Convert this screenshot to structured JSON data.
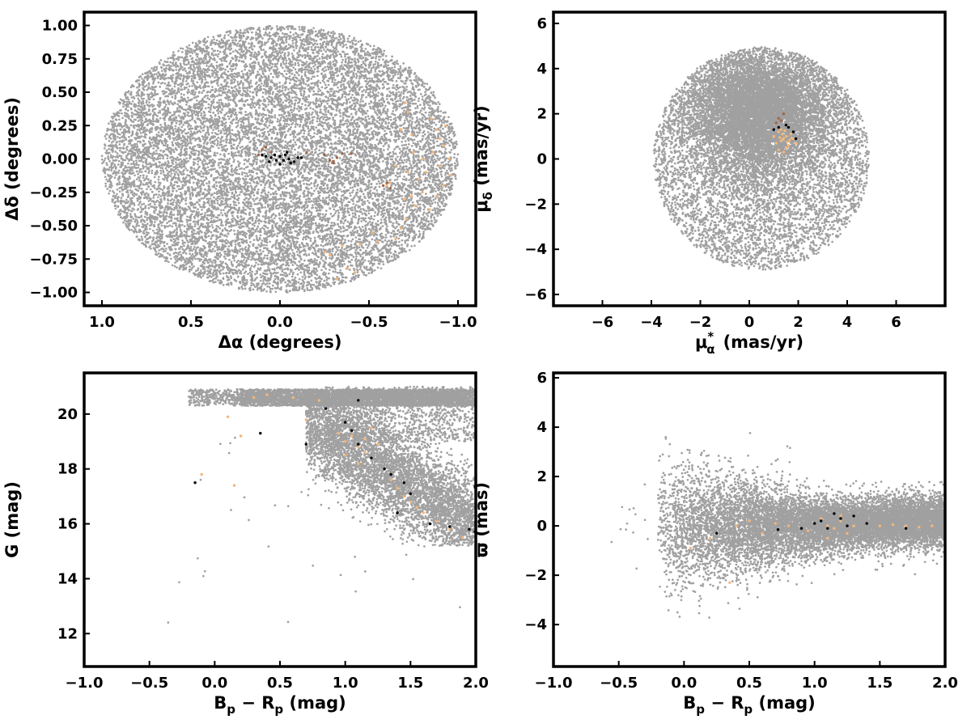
{
  "colors": {
    "field_stars": "#a0a0a0",
    "candidates": "#f4b77b",
    "brown_members": "#a0684a",
    "black_members": "#000000"
  },
  "chart_data": [
    {
      "id": "sky",
      "type": "scatter",
      "xlabel": "Δα (degrees)",
      "ylabel": "Δδ (degrees)",
      "xlim": [
        1.1,
        -1.1
      ],
      "ylim": [
        -1.1,
        1.1
      ],
      "x_inverted": true,
      "xticks": [
        1.0,
        0.5,
        0.0,
        -0.5,
        -1.0
      ],
      "xtick_labels": [
        "1.0",
        "0.5",
        "0.0",
        "−0.5",
        "−1.0"
      ],
      "yticks": [
        1.0,
        0.75,
        0.5,
        0.25,
        0.0,
        -0.25,
        -0.5,
        -0.75,
        -1.0
      ],
      "ytick_labels": [
        "1.00",
        "0.75",
        "0.50",
        "0.25",
        "0.00",
        "−0.25",
        "−0.50",
        "−0.75",
        "−1.00"
      ],
      "grid": false,
      "series": [
        {
          "color_key": "field_stars",
          "count": 14000,
          "description_shape": "uniform disk of radius 1.0 deg centered on (0,0)"
        },
        {
          "color_key": "candidates",
          "points": [
            [
              -0.7,
              0.42
            ],
            [
              -0.72,
              0.35
            ],
            [
              -0.68,
              0.22
            ],
            [
              -0.74,
              0.18
            ],
            [
              -0.85,
              0.3
            ],
            [
              -0.88,
              0.22
            ],
            [
              -0.9,
              0.15
            ],
            [
              -0.92,
              0.1
            ],
            [
              -0.86,
              0.05
            ],
            [
              -0.95,
              0.0
            ],
            [
              -0.9,
              -0.05
            ],
            [
              -0.82,
              -0.1
            ],
            [
              -0.78,
              -0.15
            ],
            [
              -0.92,
              -0.2
            ],
            [
              -0.88,
              -0.28
            ],
            [
              -0.8,
              -0.25
            ],
            [
              -0.72,
              -0.1
            ],
            [
              -0.7,
              -0.3
            ],
            [
              -0.65,
              -0.05
            ],
            [
              -0.62,
              -0.18
            ],
            [
              -0.75,
              0.05
            ],
            [
              -0.96,
              -0.12
            ],
            [
              -0.8,
              0.0
            ],
            [
              -0.76,
              -0.35
            ],
            [
              -0.71,
              -0.45
            ],
            [
              -0.65,
              -0.6
            ],
            [
              -0.55,
              -0.62
            ],
            [
              -0.45,
              -0.64
            ],
            [
              -0.35,
              -0.65
            ],
            [
              -0.25,
              -0.7
            ],
            [
              -0.38,
              -0.82
            ],
            [
              -0.42,
              -0.85
            ],
            [
              -0.32,
              -0.9
            ],
            [
              -0.28,
              -0.72
            ],
            [
              -0.52,
              -0.55
            ],
            [
              -0.68,
              -0.52
            ],
            [
              -0.74,
              -0.28
            ],
            [
              -0.93,
              0.25
            ],
            [
              -0.84,
              -0.38
            ],
            [
              -0.6,
              -0.2
            ]
          ]
        },
        {
          "color_key": "brown_members",
          "points": [
            [
              0.1,
              0.07
            ],
            [
              0.05,
              0.05
            ],
            [
              0.12,
              0.03
            ],
            [
              0.08,
              0.09
            ],
            [
              -0.15,
              0.05
            ],
            [
              -0.25,
              0.03
            ],
            [
              -0.3,
              -0.02
            ],
            [
              -0.32,
              0.01
            ],
            [
              -0.35,
              0.04
            ],
            [
              -0.28,
              -0.01
            ],
            [
              -0.4,
              0.04
            ],
            [
              -0.6,
              -0.18
            ],
            [
              -0.62,
              -0.22
            ],
            [
              -0.58,
              -0.2
            ],
            [
              -0.3,
              -0.03
            ]
          ]
        },
        {
          "color_key": "black_members",
          "points": [
            [
              0.08,
              0.02
            ],
            [
              0.05,
              0.01
            ],
            [
              0.02,
              -0.01
            ],
            [
              0.0,
              0.02
            ],
            [
              -0.02,
              -0.01
            ],
            [
              -0.05,
              0.0
            ],
            [
              -0.08,
              -0.02
            ],
            [
              -0.1,
              0.01
            ],
            [
              0.06,
              -0.02
            ],
            [
              0.03,
              0.03
            ],
            [
              -0.03,
              0.03
            ],
            [
              -0.06,
              -0.03
            ],
            [
              0.0,
              -0.04
            ],
            [
              -0.12,
              0.01
            ],
            [
              0.1,
              0.03
            ],
            [
              -0.04,
              0.05
            ]
          ]
        }
      ]
    },
    {
      "id": "proper_motion",
      "type": "scatter",
      "xlabel": "μ*α (mas/yr)",
      "ylabel": "μδ (mas/yr)",
      "xlim": [
        -8,
        8
      ],
      "ylim": [
        -6.5,
        6.5
      ],
      "xticks": [
        -6,
        -4,
        -2,
        0,
        2,
        4,
        6
      ],
      "xtick_labels": [
        "−6",
        "−4",
        "−2",
        "0",
        "2",
        "4",
        "6"
      ],
      "yticks": [
        6,
        4,
        2,
        0,
        -2,
        -4,
        -6
      ],
      "ytick_labels": [
        "6",
        "4",
        "2",
        "0",
        "−2",
        "−4",
        "−6"
      ],
      "grid": false,
      "series": [
        {
          "color_key": "field_stars",
          "count": 14000,
          "description_shape": "dense concentration near (0,2) within a disk of radius ~5 mas/yr"
        },
        {
          "color_key": "candidates",
          "points": [
            [
              1.3,
              0.8
            ],
            [
              1.5,
              1.0
            ],
            [
              1.2,
              1.2
            ],
            [
              1.6,
              0.6
            ],
            [
              1.4,
              0.9
            ],
            [
              1.7,
              1.1
            ],
            [
              1.1,
              0.7
            ],
            [
              1.5,
              0.5
            ],
            [
              1.3,
              1.3
            ],
            [
              1.8,
              0.9
            ],
            [
              1.2,
              0.4
            ],
            [
              1.6,
              1.4
            ],
            [
              1.0,
              1.0
            ],
            [
              1.4,
              0.3
            ],
            [
              1.9,
              0.7
            ],
            [
              1.35,
              1.1
            ],
            [
              1.55,
              0.75
            ],
            [
              1.25,
              0.95
            ],
            [
              1.45,
              1.25
            ],
            [
              1.65,
              0.85
            ]
          ]
        },
        {
          "color_key": "brown_members",
          "points": [
            [
              1.2,
              1.8
            ],
            [
              1.4,
              2.0
            ],
            [
              1.1,
              1.6
            ],
            [
              1.3,
              1.7
            ]
          ]
        },
        {
          "color_key": "black_members",
          "points": [
            [
              1.0,
              1.3
            ],
            [
              1.6,
              1.4
            ],
            [
              1.8,
              1.2
            ],
            [
              1.2,
              1.4
            ],
            [
              1.9,
              0.9
            ],
            [
              1.5,
              1.5
            ]
          ]
        }
      ]
    },
    {
      "id": "cmd",
      "type": "scatter",
      "xlabel": "Bp − Rp (mag)",
      "ylabel": "G (mag)",
      "xlim": [
        -1.0,
        2.0
      ],
      "ylim": [
        10.8,
        21.5
      ],
      "xticks": [
        -1.0,
        -0.5,
        0.0,
        0.5,
        1.0,
        1.5,
        2.0
      ],
      "xtick_labels": [
        "−1.0",
        "−0.5",
        "0.0",
        "0.5",
        "1.0",
        "1.5",
        "2.0"
      ],
      "yticks": [
        20,
        18,
        16,
        14,
        12
      ],
      "ytick_labels": [
        "20",
        "18",
        "16",
        "14",
        "12"
      ],
      "grid": false,
      "series": [
        {
          "color_key": "field_stars",
          "count": 12000,
          "description_shape": "faint band near G≈20.5 plus sequence from (0.9,19) to (2.0,15.5)"
        },
        {
          "color_key": "candidates",
          "points": [
            [
              1.0,
              19.0
            ],
            [
              1.1,
              18.8
            ],
            [
              1.05,
              19.2
            ],
            [
              1.15,
              18.6
            ],
            [
              1.2,
              18.4
            ],
            [
              1.25,
              18.9
            ],
            [
              0.95,
              19.3
            ],
            [
              1.1,
              18.2
            ],
            [
              1.3,
              18.0
            ],
            [
              1.35,
              17.6
            ],
            [
              1.4,
              17.3
            ],
            [
              1.45,
              17.0
            ],
            [
              1.5,
              16.8
            ],
            [
              1.55,
              16.6
            ],
            [
              1.6,
              16.4
            ],
            [
              1.7,
              16.1
            ],
            [
              1.8,
              15.8
            ],
            [
              1.9,
              15.5
            ],
            [
              0.6,
              20.6
            ],
            [
              0.4,
              20.7
            ],
            [
              0.8,
              20.5
            ],
            [
              0.3,
              20.6
            ],
            [
              0.7,
              19.8
            ],
            [
              1.2,
              19.5
            ],
            [
              0.1,
              19.9
            ],
            [
              0.2,
              19.2
            ],
            [
              -0.1,
              17.8
            ],
            [
              0.15,
              17.4
            ],
            [
              1.0,
              18.5
            ],
            [
              1.15,
              19.1
            ]
          ]
        },
        {
          "color_key": "black_members",
          "points": [
            [
              1.0,
              19.7
            ],
            [
              1.05,
              19.4
            ],
            [
              1.1,
              18.9
            ],
            [
              1.2,
              18.4
            ],
            [
              1.3,
              18.0
            ],
            [
              1.35,
              17.8
            ],
            [
              1.45,
              17.5
            ],
            [
              1.5,
              17.1
            ],
            [
              1.4,
              16.4
            ],
            [
              1.65,
              16.0
            ],
            [
              1.8,
              15.9
            ],
            [
              1.95,
              15.8
            ],
            [
              2.0,
              15.5
            ],
            [
              0.7,
              18.9
            ],
            [
              -0.15,
              17.5
            ],
            [
              0.35,
              19.3
            ],
            [
              0.85,
              20.2
            ],
            [
              1.1,
              20.5
            ]
          ]
        }
      ]
    },
    {
      "id": "parallax",
      "type": "scatter",
      "xlabel": "Bp − Rp (mag)",
      "ylabel": "ϖ (mas)",
      "xlim": [
        -1.0,
        2.0
      ],
      "ylim": [
        -5.7,
        6.2
      ],
      "xticks": [
        -1.0,
        -0.5,
        0.0,
        0.5,
        1.0,
        1.5,
        2.0
      ],
      "xtick_labels": [
        "−1.0",
        "−0.5",
        "0.0",
        "0.5",
        "1.0",
        "1.5",
        "2.0"
      ],
      "yticks": [
        6,
        4,
        2,
        0,
        -2,
        -4
      ],
      "ytick_labels": [
        "6",
        "4",
        "2",
        "0",
        "−2",
        "−4"
      ],
      "grid": false,
      "series": [
        {
          "color_key": "field_stars",
          "count": 12000,
          "description_shape": "horizontal band around ϖ=0, spread widening toward bluer colors"
        },
        {
          "color_key": "candidates",
          "points": [
            [
              1.0,
              0.1
            ],
            [
              1.1,
              0.0
            ],
            [
              1.2,
              0.2
            ],
            [
              1.15,
              -0.1
            ],
            [
              1.3,
              0.0
            ],
            [
              1.05,
              0.3
            ],
            [
              0.95,
              -0.2
            ],
            [
              1.25,
              -0.3
            ],
            [
              1.4,
              0.1
            ],
            [
              1.5,
              0.0
            ],
            [
              1.6,
              0.05
            ],
            [
              1.7,
              0.0
            ],
            [
              1.8,
              -0.05
            ],
            [
              1.9,
              0.0
            ],
            [
              0.4,
              0.0
            ],
            [
              0.5,
              0.2
            ],
            [
              0.6,
              -0.3
            ],
            [
              0.7,
              0.1
            ],
            [
              0.2,
              -0.5
            ],
            [
              0.35,
              -2.3
            ],
            [
              0.05,
              -0.9
            ],
            [
              1.1,
              -0.5
            ],
            [
              1.2,
              0.4
            ],
            [
              0.8,
              0.0
            ]
          ]
        },
        {
          "color_key": "black_members",
          "points": [
            [
              1.0,
              0.1
            ],
            [
              1.05,
              0.2
            ],
            [
              1.1,
              -0.1
            ],
            [
              1.2,
              0.3
            ],
            [
              1.25,
              0.0
            ],
            [
              1.3,
              0.4
            ],
            [
              1.4,
              0.1
            ],
            [
              1.7,
              -0.1
            ],
            [
              0.25,
              -0.3
            ],
            [
              0.72,
              -0.15
            ],
            [
              0.9,
              -0.1
            ],
            [
              1.15,
              0.5
            ]
          ]
        }
      ]
    }
  ]
}
